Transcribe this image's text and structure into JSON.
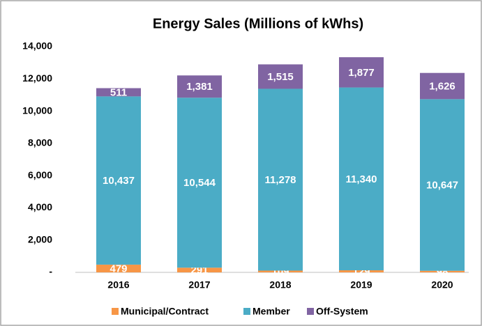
{
  "chart_data": {
    "type": "stacked_bar",
    "title": "Energy Sales (Millions of kWhs)",
    "categories": [
      "2016",
      "2017",
      "2018",
      "2019",
      "2020"
    ],
    "series": [
      {
        "name": "Municipal/Contract",
        "color": "#f79646",
        "values": [
          479,
          291,
          109,
          129,
          98
        ]
      },
      {
        "name": "Member",
        "color": "#4bacc6",
        "values": [
          10437,
          10544,
          11278,
          11340,
          10647
        ],
        "value_labels": [
          "10,437",
          "10,544",
          "11,278",
          "11,340",
          "10,647"
        ]
      },
      {
        "name": "Off-System",
        "color": "#8064a2",
        "values": [
          511,
          1381,
          1515,
          1877,
          1626
        ],
        "value_labels": [
          "511",
          "1,381",
          "1,515",
          "1,877",
          "1,626"
        ]
      }
    ],
    "ylim": [
      0,
      14000
    ],
    "yticks": [
      {
        "value": 0,
        "label": "-"
      },
      {
        "value": 2000,
        "label": "2,000"
      },
      {
        "value": 4000,
        "label": "4,000"
      },
      {
        "value": 6000,
        "label": "6,000"
      },
      {
        "value": 8000,
        "label": "8,000"
      },
      {
        "value": 10000,
        "label": "10,000"
      },
      {
        "value": 12000,
        "label": "12,000"
      },
      {
        "value": 14000,
        "label": "14,000"
      }
    ],
    "legend": "bottom"
  }
}
